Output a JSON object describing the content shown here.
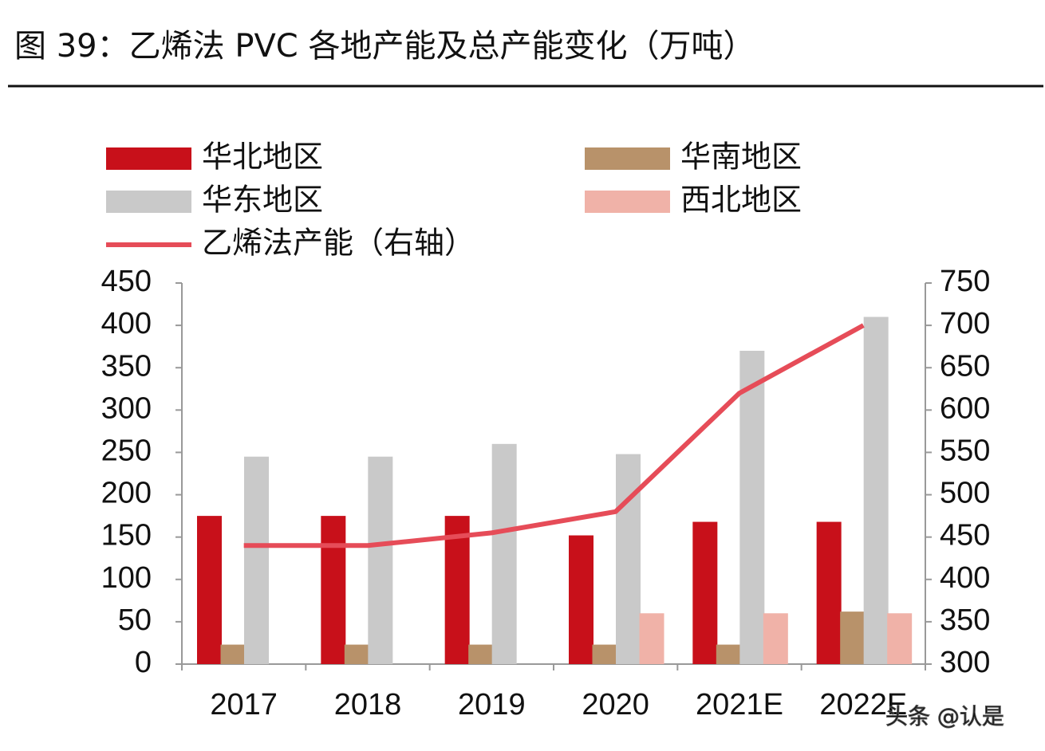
{
  "chart_data": {
    "type": "bar",
    "title": "图 39：乙烯法 PVC 各地产能及总产能变化（万吨）",
    "categories": [
      "2017",
      "2018",
      "2019",
      "2020",
      "2021E",
      "2022E"
    ],
    "series": [
      {
        "name": "华北地区",
        "color": "#c8101a",
        "values": [
          175,
          175,
          175,
          152,
          168,
          168
        ]
      },
      {
        "name": "华南地区",
        "color": "#b8926a",
        "values": [
          23,
          23,
          23,
          23,
          23,
          62
        ]
      },
      {
        "name": "华东地区",
        "color": "#c9c9c9",
        "values": [
          245,
          245,
          260,
          248,
          370,
          410
        ]
      },
      {
        "name": "西北地区",
        "color": "#f0b2a8",
        "values": [
          0,
          0,
          0,
          60,
          60,
          60
        ]
      },
      {
        "name": "乙烯法产能（右轴）",
        "color": "#e64c58",
        "type": "line",
        "axis": "y2",
        "values": [
          440,
          440,
          455,
          480,
          620,
          700
        ]
      }
    ],
    "ylim": [
      0,
      450
    ],
    "yticks": [
      0,
      50,
      100,
      150,
      200,
      250,
      300,
      350,
      400,
      450
    ],
    "y2lim": [
      300,
      750
    ],
    "y2ticks": [
      300,
      350,
      400,
      450,
      500,
      550,
      600,
      650,
      700,
      750
    ],
    "legend": "top",
    "watermark": "头条 @认是"
  }
}
